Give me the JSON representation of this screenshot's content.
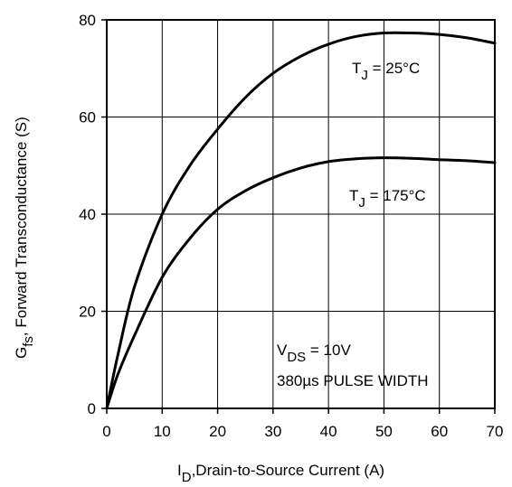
{
  "chart_data": {
    "type": "line",
    "xlabel": {
      "main": "I",
      "sub": "D",
      "rest": ",Drain-to-Source Current (A)"
    },
    "ylabel": {
      "main": "G",
      "sub": "fs",
      "rest": ", Forward Transconductance (S)"
    },
    "xlim": [
      0,
      70
    ],
    "ylim": [
      0,
      80
    ],
    "xticks": [
      0,
      10,
      20,
      30,
      40,
      50,
      60,
      70
    ],
    "yticks": [
      0,
      20,
      40,
      60,
      80
    ],
    "grid": true,
    "series": [
      {
        "name": "T_J = 25°C",
        "x": [
          0,
          2,
          5,
          10,
          15,
          20,
          25,
          30,
          35,
          40,
          45,
          50,
          55,
          60,
          65,
          70
        ],
        "y": [
          0,
          11,
          25,
          40,
          50,
          57.5,
          64,
          69,
          72.5,
          75,
          76.6,
          77.3,
          77.3,
          77,
          76.3,
          75.2
        ]
      },
      {
        "name": "T_J = 175°C",
        "x": [
          0,
          2,
          5,
          10,
          15,
          20,
          25,
          30,
          35,
          40,
          45,
          50,
          55,
          60,
          65,
          70
        ],
        "y": [
          0,
          7,
          15,
          27,
          35,
          41,
          44.8,
          47.5,
          49.5,
          50.8,
          51.4,
          51.6,
          51.5,
          51.2,
          51,
          50.6
        ]
      }
    ],
    "annotations": [
      {
        "main": "T",
        "sub": "J",
        "rest": " = 25°C",
        "for_series": 0
      },
      {
        "main": "T",
        "sub": "J",
        "rest": " = 175°C",
        "for_series": 1
      },
      {
        "main": "V",
        "sub": "DS",
        "rest": " = 10V"
      },
      {
        "text": "380µs PULSE WIDTH"
      }
    ]
  }
}
